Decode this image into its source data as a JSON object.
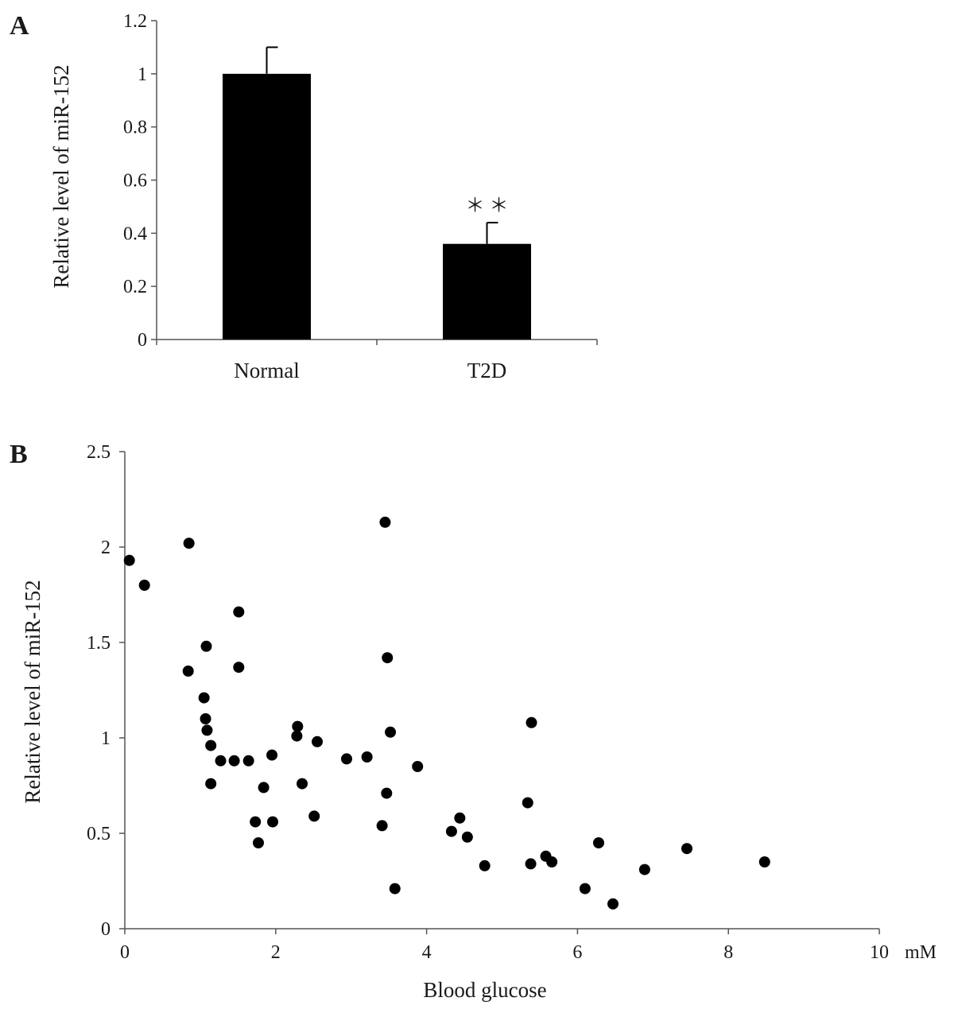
{
  "chart_data": [
    {
      "panel": "A",
      "type": "bar",
      "categories": [
        "Normal",
        "T2D"
      ],
      "values": [
        1.0,
        0.36
      ],
      "errors": [
        0.1,
        0.08
      ],
      "annotations": [
        "",
        "＊ ＊"
      ],
      "ylabel": "Relative level of  miR-152",
      "xlabel": "",
      "ylim": [
        0,
        1.2
      ],
      "yticks": [
        "0",
        "0.2",
        "0.4",
        "0.6",
        "0.8",
        "1",
        "1.2"
      ],
      "bar_color": "#000000"
    },
    {
      "panel": "B",
      "type": "scatter",
      "xlabel": "Blood glucose",
      "x_unit": "mM",
      "ylabel": "Relative level of  miR-152",
      "xlim": [
        0,
        10
      ],
      "ylim": [
        0,
        2.5
      ],
      "xticks": [
        "0",
        "2",
        "4",
        "6",
        "8",
        "10"
      ],
      "yticks": [
        "0",
        "0.5",
        "1",
        "1.5",
        "2",
        "2.5"
      ],
      "marker_color": "#000000",
      "points": [
        [
          0.06,
          1.93
        ],
        [
          0.26,
          1.8
        ],
        [
          0.85,
          2.02
        ],
        [
          0.84,
          1.35
        ],
        [
          1.05,
          1.21
        ],
        [
          1.08,
          1.48
        ],
        [
          1.07,
          1.1
        ],
        [
          1.09,
          1.04
        ],
        [
          1.14,
          0.96
        ],
        [
          1.14,
          0.76
        ],
        [
          1.27,
          0.88
        ],
        [
          1.45,
          0.88
        ],
        [
          1.51,
          1.66
        ],
        [
          1.51,
          1.37
        ],
        [
          1.64,
          0.88
        ],
        [
          1.73,
          0.56
        ],
        [
          1.77,
          0.45
        ],
        [
          1.84,
          0.74
        ],
        [
          1.95,
          0.91
        ],
        [
          1.96,
          0.56
        ],
        [
          2.28,
          1.01
        ],
        [
          2.29,
          1.06
        ],
        [
          2.35,
          0.76
        ],
        [
          2.51,
          0.59
        ],
        [
          2.55,
          0.98
        ],
        [
          2.94,
          0.89
        ],
        [
          3.21,
          0.9
        ],
        [
          3.41,
          0.54
        ],
        [
          3.45,
          2.13
        ],
        [
          3.47,
          0.71
        ],
        [
          3.48,
          1.42
        ],
        [
          3.52,
          1.03
        ],
        [
          3.58,
          0.21
        ],
        [
          3.88,
          0.85
        ],
        [
          4.33,
          0.51
        ],
        [
          4.44,
          0.58
        ],
        [
          4.54,
          0.48
        ],
        [
          4.77,
          0.33
        ],
        [
          5.34,
          0.66
        ],
        [
          5.38,
          0.34
        ],
        [
          5.39,
          1.08
        ],
        [
          5.58,
          0.38
        ],
        [
          5.66,
          0.35
        ],
        [
          6.1,
          0.21
        ],
        [
          6.28,
          0.45
        ],
        [
          6.47,
          0.13
        ],
        [
          6.89,
          0.31
        ],
        [
          7.45,
          0.42
        ],
        [
          8.48,
          0.35
        ]
      ]
    }
  ]
}
